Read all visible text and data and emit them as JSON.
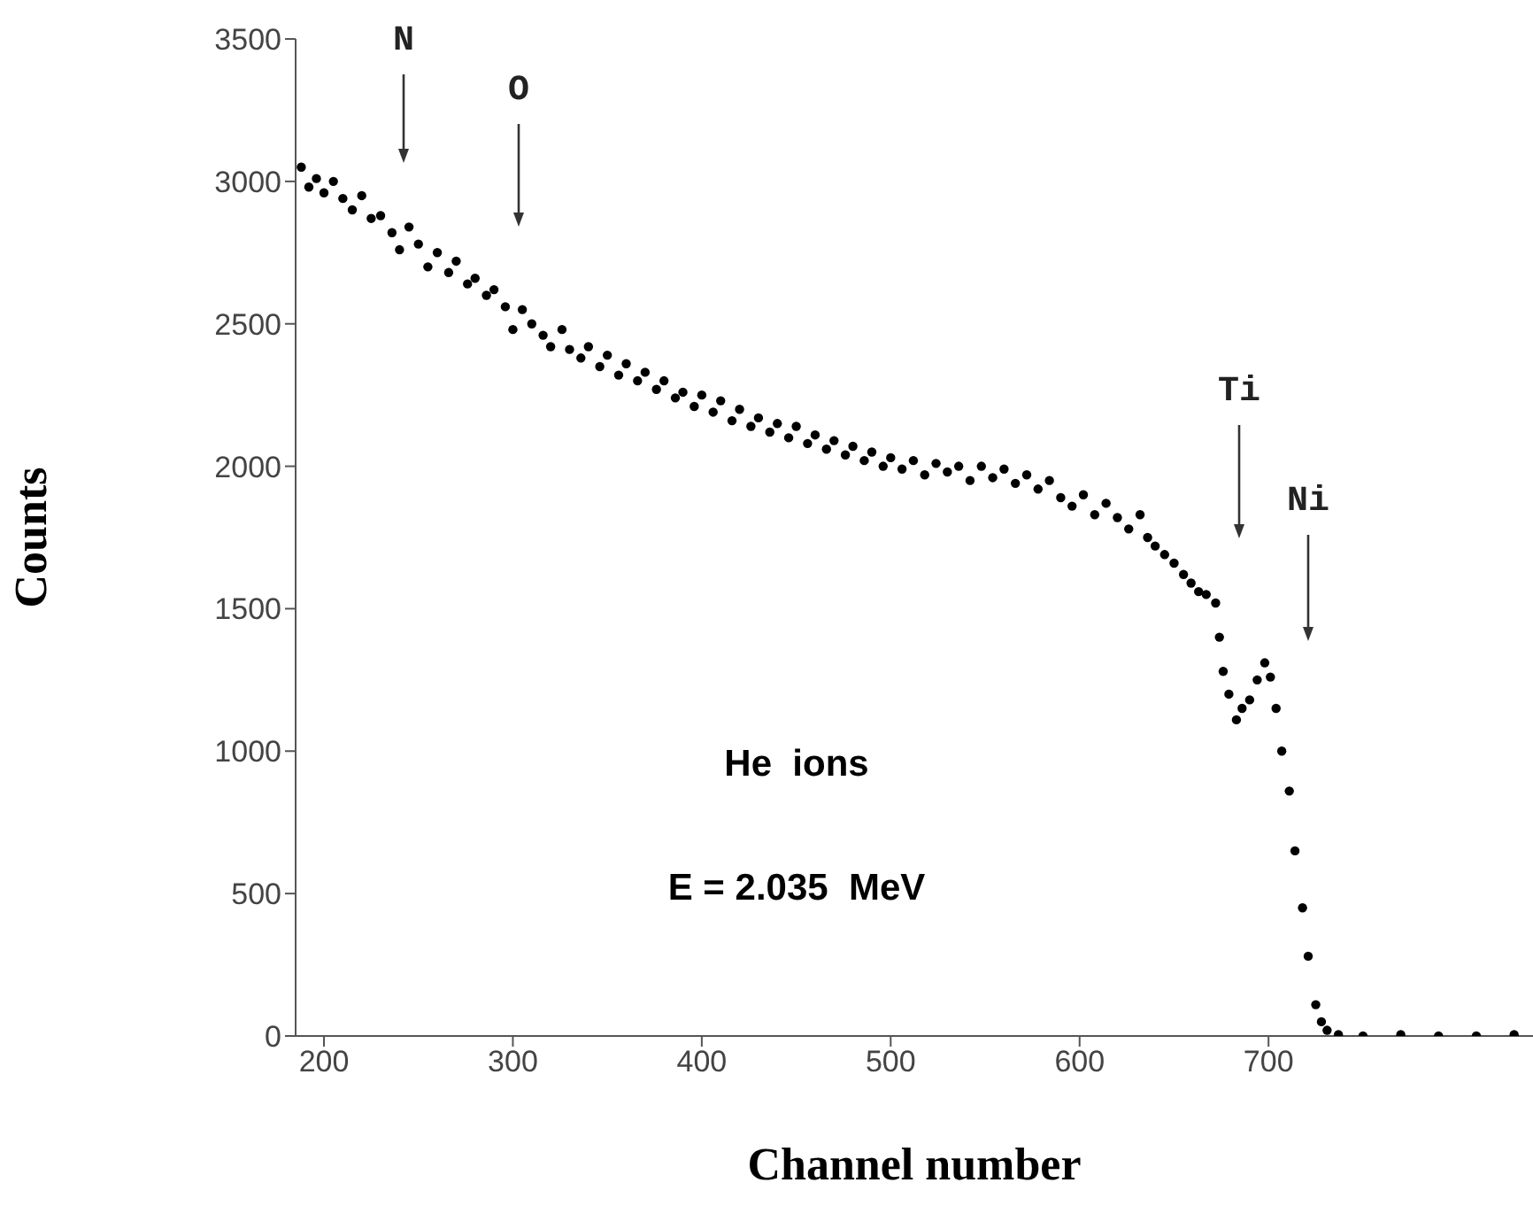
{
  "chart_data": {
    "type": "scatter",
    "xlabel": "Channel number",
    "ylabel": "Counts",
    "xlim": [
      185,
      840
    ],
    "xticks": [
      200,
      300,
      400,
      500,
      600,
      700
    ],
    "ylim": [
      0,
      3500
    ],
    "yticks": [
      0,
      500,
      1000,
      1500,
      2000,
      2500,
      3000,
      3500
    ],
    "marker": "circle",
    "x": [
      188,
      192,
      196,
      200,
      205,
      210,
      215,
      220,
      225,
      230,
      236,
      240,
      245,
      250,
      255,
      260,
      266,
      270,
      276,
      280,
      286,
      290,
      296,
      300,
      305,
      310,
      316,
      320,
      326,
      330,
      336,
      340,
      346,
      350,
      356,
      360,
      366,
      370,
      376,
      380,
      386,
      390,
      396,
      400,
      406,
      410,
      416,
      420,
      426,
      430,
      436,
      440,
      446,
      450,
      456,
      460,
      466,
      470,
      476,
      480,
      486,
      490,
      496,
      500,
      506,
      512,
      518,
      524,
      530,
      536,
      542,
      548,
      554,
      560,
      566,
      572,
      578,
      584,
      590,
      596,
      602,
      608,
      614,
      620,
      626,
      632,
      636,
      640,
      645,
      650,
      655,
      659,
      663,
      667,
      672,
      674,
      676,
      679,
      683,
      686,
      690,
      694,
      698,
      701,
      704,
      707,
      711,
      714,
      718,
      721,
      725,
      728,
      731,
      737,
      750,
      770,
      790,
      810,
      830
    ],
    "series": [
      {
        "color": "#000000",
        "values": [
          3050,
          2980,
          3010,
          2960,
          3000,
          2940,
          2900,
          2950,
          2870,
          2880,
          2820,
          2760,
          2840,
          2780,
          2700,
          2750,
          2680,
          2720,
          2640,
          2660,
          2600,
          2620,
          2560,
          2480,
          2550,
          2500,
          2460,
          2420,
          2480,
          2410,
          2380,
          2420,
          2350,
          2390,
          2320,
          2360,
          2300,
          2330,
          2270,
          2300,
          2240,
          2260,
          2210,
          2250,
          2190,
          2230,
          2160,
          2200,
          2140,
          2170,
          2120,
          2150,
          2100,
          2140,
          2080,
          2110,
          2060,
          2090,
          2040,
          2070,
          2020,
          2050,
          2000,
          2030,
          1990,
          2020,
          1970,
          2010,
          1980,
          2000,
          1950,
          2000,
          1960,
          1990,
          1940,
          1970,
          1920,
          1950,
          1890,
          1860,
          1900,
          1830,
          1870,
          1820,
          1780,
          1830,
          1750,
          1720,
          1690,
          1660,
          1620,
          1590,
          1560,
          1550,
          1520,
          1400,
          1280,
          1200,
          1110,
          1150,
          1180,
          1250,
          1310,
          1260,
          1150,
          1000,
          860,
          650,
          450,
          280,
          110,
          50,
          20,
          5,
          0,
          5,
          0,
          0,
          5
        ]
      }
    ],
    "annotations": [
      "N",
      "O",
      "Ti",
      "Ni",
      "He  ions",
      "E = 2.035  MeV"
    ]
  }
}
